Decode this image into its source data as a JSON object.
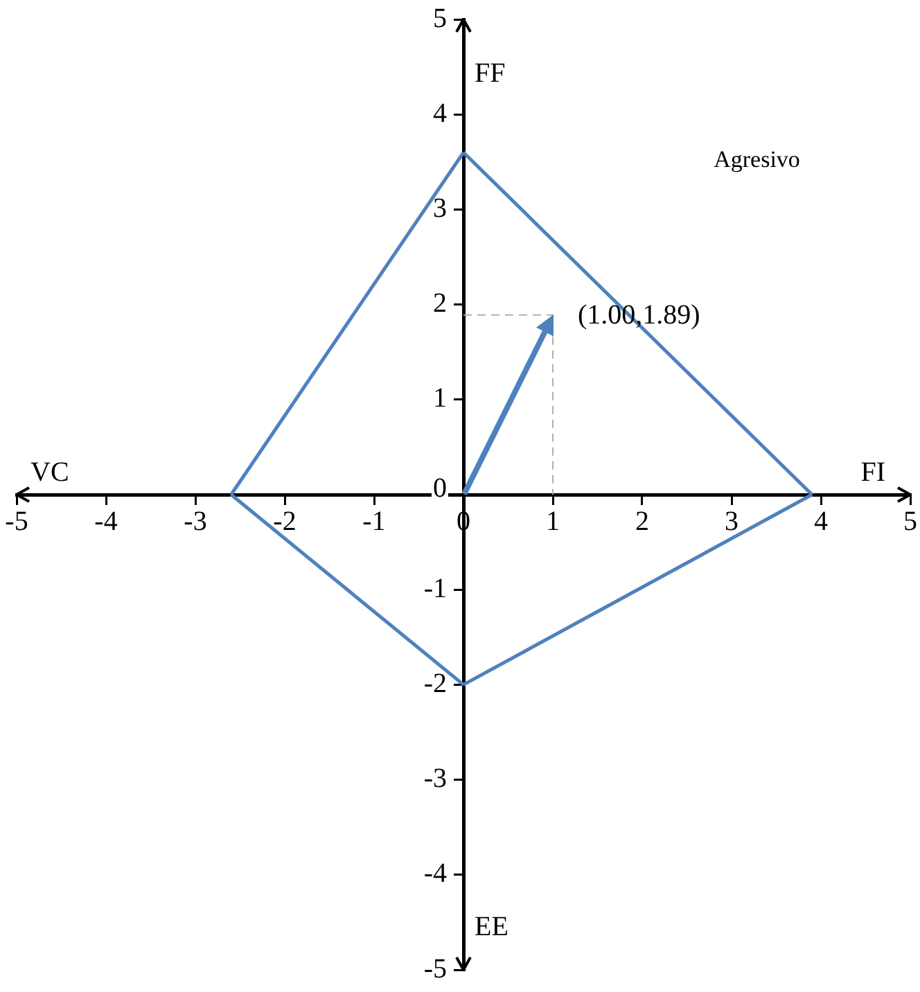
{
  "chart_data": {
    "type": "line",
    "xlabel": "FI",
    "ylabel": "FF",
    "xlim": [
      -5,
      5
    ],
    "ylim": [
      -5,
      5
    ],
    "xticks": [
      -5,
      -4,
      -3,
      -2,
      -1,
      0,
      1,
      2,
      3,
      4,
      5
    ],
    "yticks": [
      -5,
      -4,
      -3,
      -2,
      -1,
      0,
      1,
      2,
      3,
      4,
      5
    ],
    "grid": false,
    "legend": false,
    "marker": "none",
    "series": [
      {
        "color": "#4f81bd",
        "x": [
          0,
          3.9
        ],
        "values": [
          3.6,
          0
        ]
      },
      {
        "color": "#4f81bd",
        "x": [
          0,
          3.9
        ],
        "values": [
          -2,
          0
        ]
      },
      {
        "color": "#4f81bd",
        "x": [
          -2.6,
          0
        ],
        "values": [
          0,
          -2
        ]
      },
      {
        "color": "#4f81bd",
        "x": [
          -2.6,
          0
        ],
        "values": [
          0,
          3.6
        ]
      },
      {
        "color": "#b0b0b0",
        "x": [
          0,
          1,
          1
        ],
        "values": [
          1.89,
          1.89,
          0
        ],
        "line_style": "dashed"
      }
    ],
    "annotations": [
      "VC",
      "EE",
      "Agresivo",
      {
        "text": "(1.00,1.89)",
        "x": 1,
        "y": 1.89
      }
    ]
  }
}
